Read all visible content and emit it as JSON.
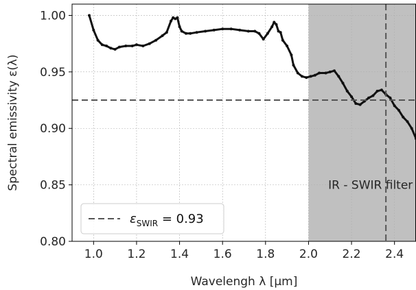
{
  "chart_data": {
    "type": "line",
    "xlabel": "Wavelengh λ [μm]",
    "ylabel": "Spectral emissivity ε(λ)",
    "xlim": [
      0.9,
      2.5
    ],
    "ylim": [
      0.8,
      1.01
    ],
    "xticks": [
      "1.0",
      "1.2",
      "1.4",
      "1.6",
      "1.8",
      "2.0",
      "2.2",
      "2.4"
    ],
    "yticks": [
      "0.80",
      "0.85",
      "0.90",
      "0.95",
      "1.00"
    ],
    "grid": true,
    "legend_position": "bottom-left",
    "shaded_region": {
      "x_start": 2.0,
      "x_end": 2.5,
      "label": "IR - SWIR filter",
      "color": "#c0c0c0"
    },
    "vertical_line": {
      "x": 2.36,
      "style": "dashed",
      "color": "#555555"
    },
    "horizontal_line": {
      "y": 0.925,
      "style": "dashed",
      "color": "#555555",
      "label_main": "ε",
      "label_sub": "SWIR",
      "label_rest": " = 0.93"
    },
    "series": [
      {
        "color": "#111111",
        "x": [
          0.98,
          1.0,
          1.02,
          1.04,
          1.06,
          1.08,
          1.1,
          1.12,
          1.15,
          1.18,
          1.2,
          1.23,
          1.26,
          1.29,
          1.32,
          1.34,
          1.36,
          1.37,
          1.38,
          1.39,
          1.4,
          1.41,
          1.43,
          1.45,
          1.48,
          1.52,
          1.56,
          1.6,
          1.64,
          1.68,
          1.72,
          1.75,
          1.77,
          1.79,
          1.81,
          1.83,
          1.84,
          1.85,
          1.86,
          1.87,
          1.88,
          1.9,
          1.92,
          1.93,
          1.95,
          1.97,
          1.99,
          2.01,
          2.03,
          2.05,
          2.08,
          2.1,
          2.12,
          2.14,
          2.16,
          2.18,
          2.2,
          2.22,
          2.24,
          2.26,
          2.28,
          2.3,
          2.32,
          2.34,
          2.36,
          2.38,
          2.4,
          2.42,
          2.44,
          2.46,
          2.48,
          2.5
        ],
        "y": [
          1.0,
          0.987,
          0.978,
          0.974,
          0.973,
          0.971,
          0.97,
          0.972,
          0.973,
          0.973,
          0.974,
          0.973,
          0.975,
          0.978,
          0.982,
          0.985,
          0.995,
          0.998,
          0.997,
          0.998,
          0.99,
          0.986,
          0.984,
          0.984,
          0.985,
          0.986,
          0.987,
          0.988,
          0.988,
          0.987,
          0.986,
          0.986,
          0.984,
          0.979,
          0.984,
          0.99,
          0.994,
          0.992,
          0.986,
          0.985,
          0.978,
          0.973,
          0.965,
          0.956,
          0.949,
          0.946,
          0.945,
          0.946,
          0.947,
          0.949,
          0.949,
          0.95,
          0.951,
          0.946,
          0.94,
          0.933,
          0.928,
          0.922,
          0.921,
          0.924,
          0.927,
          0.929,
          0.933,
          0.934,
          0.93,
          0.927,
          0.92,
          0.916,
          0.91,
          0.906,
          0.9,
          0.891
        ]
      }
    ]
  }
}
